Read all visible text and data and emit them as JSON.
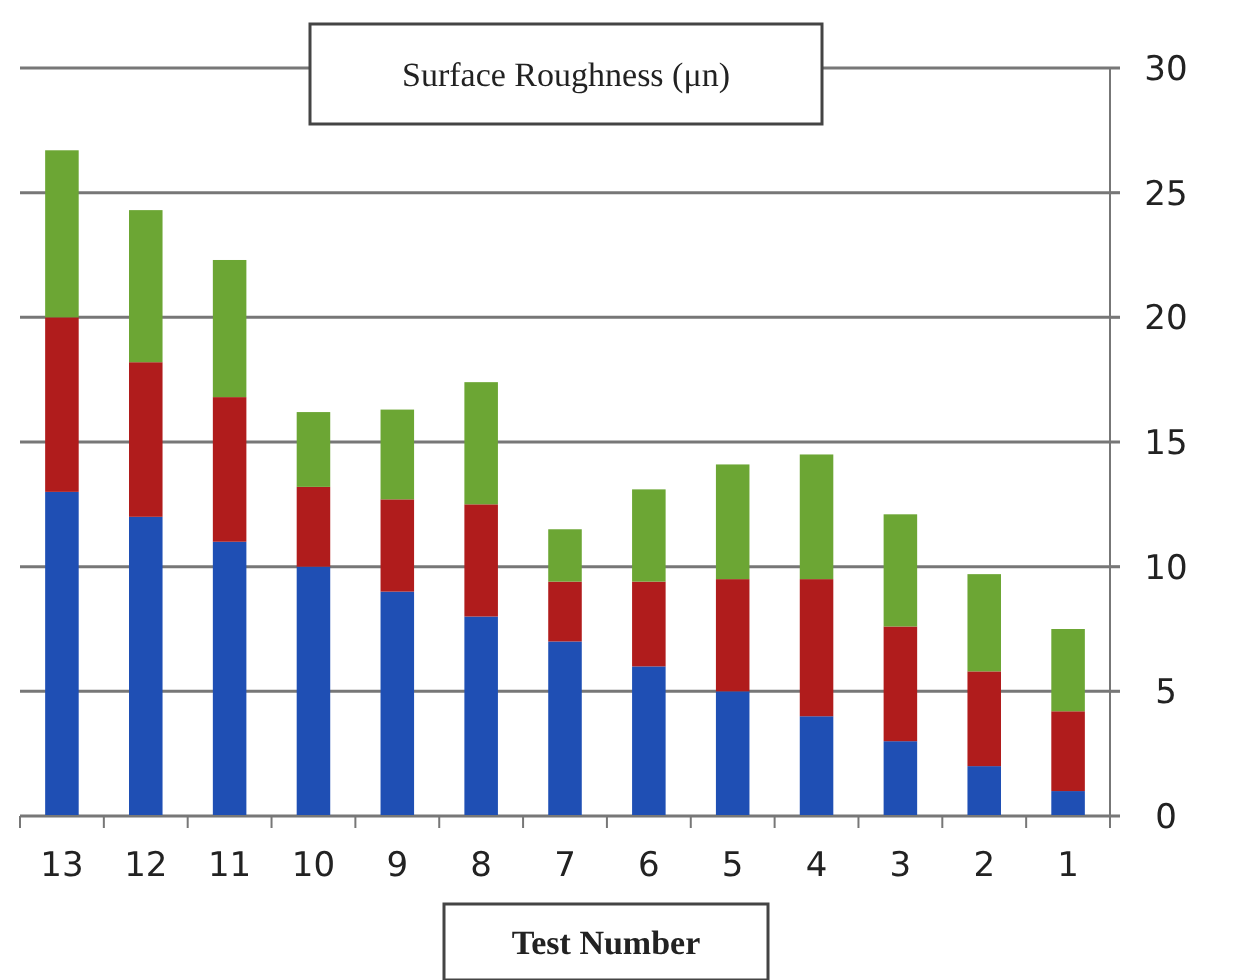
{
  "chart_data": {
    "type": "bar",
    "title": "Surface Roughness (μn)",
    "xlabel": "Test Number",
    "stacked": true,
    "grid": "y",
    "categories": [
      "13",
      "12",
      "11",
      "10",
      "9",
      "8",
      "7",
      "6",
      "5",
      "4",
      "3",
      "2",
      "1"
    ],
    "series": [
      {
        "color": "#1f4fb4",
        "values": [
          13,
          12,
          11,
          10,
          9,
          8,
          7,
          6,
          5,
          4,
          3,
          2,
          1
        ]
      },
      {
        "color": "#b01c1c",
        "values": [
          7,
          6.2,
          5.8,
          3.2,
          3.7,
          4.5,
          2.4,
          3.4,
          4.5,
          5.5,
          4.6,
          3.8,
          3.2
        ]
      },
      {
        "color": "#6ca634",
        "values": [
          6.7,
          6.1,
          5.5,
          3,
          3.6,
          4.9,
          2.1,
          3.7,
          4.6,
          5,
          4.5,
          3.9,
          3.3
        ]
      }
    ],
    "ylim": [
      0,
      30
    ],
    "yticks": [
      0,
      5,
      10,
      15,
      20,
      25,
      30
    ]
  }
}
